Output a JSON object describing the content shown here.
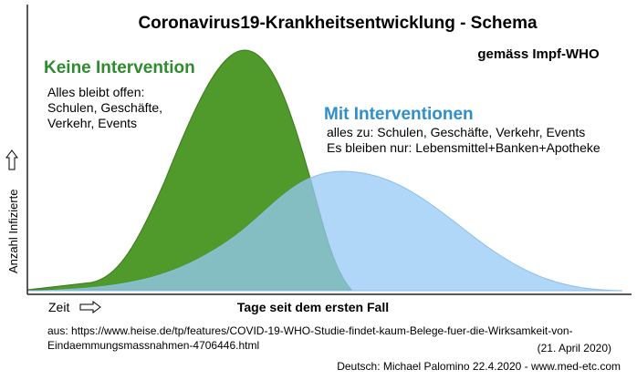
{
  "title": "Coronavirus19-Krankheitsentwicklung - Schema",
  "subtitle": "gemäss Impf-WHO",
  "no_intervention": {
    "label": "Keine Intervention",
    "lines": [
      "Alles bleibt offen:",
      "Schulen, Geschäfte,",
      "Verkehr, Events"
    ]
  },
  "interventions": {
    "label": "Mit Interventionen",
    "lines": [
      "alles zu: Schulen, Geschäfte, Verkehr, Events",
      "Es bleiben nur: Lebensmittel+Banken+Apotheke"
    ]
  },
  "y_axis_label": "Anzahl Infizierte",
  "time_label": "Zeit",
  "x_axis_label": "Tage seit dem ersten Fall",
  "source": [
    "aus: https://www.heise.de/tp/features/COVID-19-WHO-Studie-findet-kaum-Belege-fuer-die-Wirksamkeit-von-",
    "Eindaemmungsmassnahmen-4706446.html"
  ],
  "source_date": "(21. April 2020)",
  "credit": "Deutsch: Michael Palomino 22.4.2020 - www.med-etc.com"
}
